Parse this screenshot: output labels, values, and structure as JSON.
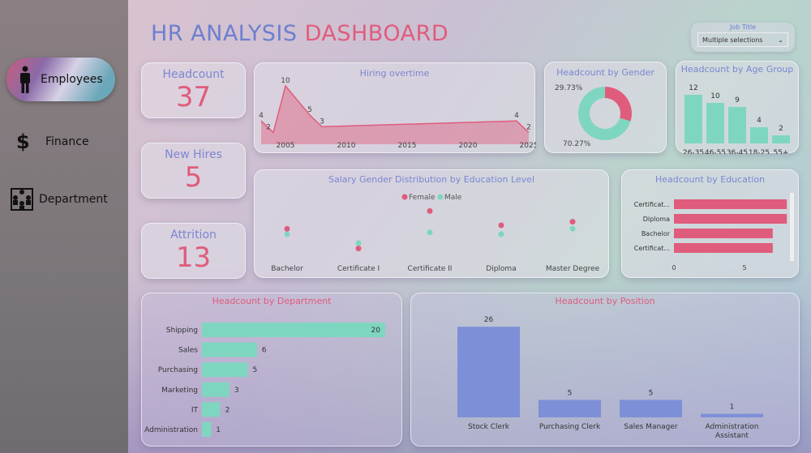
{
  "nav": [
    {
      "label": "Employees",
      "icon": "person-icon",
      "active": true
    },
    {
      "label": "Finance",
      "icon": "dollar-icon"
    },
    {
      "label": "Department",
      "icon": "org-chart-icon"
    }
  ],
  "header": {
    "title_a": "HR ANALYSIS",
    "title_b": "DASHBOARD"
  },
  "slicer": {
    "label": "Job Title",
    "value": "Multiple selections"
  },
  "kpis": [
    {
      "label": "Headcount",
      "value": "37"
    },
    {
      "label": "New Hires",
      "value": "5"
    },
    {
      "label": "Attrition",
      "value": "13"
    }
  ],
  "colors": {
    "female": "#e05c7c",
    "male": "#7fd6c0",
    "position": "#7d8fd6",
    "accent": "#7a86d0"
  },
  "chart_data": [
    {
      "id": "hiring",
      "type": "area",
      "title": "Hiring overtime",
      "x": [
        2003,
        2004,
        2005,
        2007,
        2008,
        2024,
        2025
      ],
      "values": [
        4,
        2,
        10,
        5,
        3,
        4,
        2
      ],
      "xticks": [
        2005,
        2010,
        2015,
        2020,
        2025
      ]
    },
    {
      "id": "gender",
      "type": "pie",
      "title": "Headcount by Gender",
      "slices": [
        {
          "label": "29.73%",
          "value": 29.73,
          "color": "#e05c7c"
        },
        {
          "label": "70.27%",
          "value": 70.27,
          "color": "#7fd6c0"
        }
      ]
    },
    {
      "id": "age",
      "type": "bar",
      "title": "Headcount by Age Group",
      "categories": [
        "26-35",
        "46-55",
        "36-45",
        "18-25",
        "55+"
      ],
      "values": [
        12,
        10,
        9,
        4,
        2
      ]
    },
    {
      "id": "salary",
      "type": "scatter",
      "title": "Salary Gender Distribution by Education Level",
      "legend": [
        "Female",
        "Male"
      ],
      "categories": [
        "Bachelor",
        "Certificate I",
        "Certificate II",
        "Diploma",
        "Master Degree"
      ],
      "series": [
        {
          "name": "Female",
          "values": [
            58,
            47,
            68,
            60,
            62
          ]
        },
        {
          "name": "Male",
          "values": [
            55,
            50,
            56,
            55,
            58
          ]
        }
      ]
    },
    {
      "id": "education",
      "type": "bar",
      "title": "Headcount by Education",
      "categories": [
        "Certificat...",
        "Diploma",
        "Bachelor",
        "Certificat..."
      ],
      "values": [
        8,
        8,
        7,
        7
      ],
      "xticks": [
        0,
        5
      ]
    },
    {
      "id": "department",
      "type": "bar",
      "title": "Headcount by Department",
      "categories": [
        "Shipping",
        "Sales",
        "Purchasing",
        "Marketing",
        "IT",
        "Administration"
      ],
      "values": [
        20,
        6,
        5,
        3,
        2,
        1
      ]
    },
    {
      "id": "position",
      "type": "bar",
      "title": "Headcount by Position",
      "categories": [
        "Stock Clerk",
        "Purchasing Clerk",
        "Sales Manager",
        "Administration Assistant"
      ],
      "values": [
        26,
        5,
        5,
        1
      ]
    }
  ]
}
